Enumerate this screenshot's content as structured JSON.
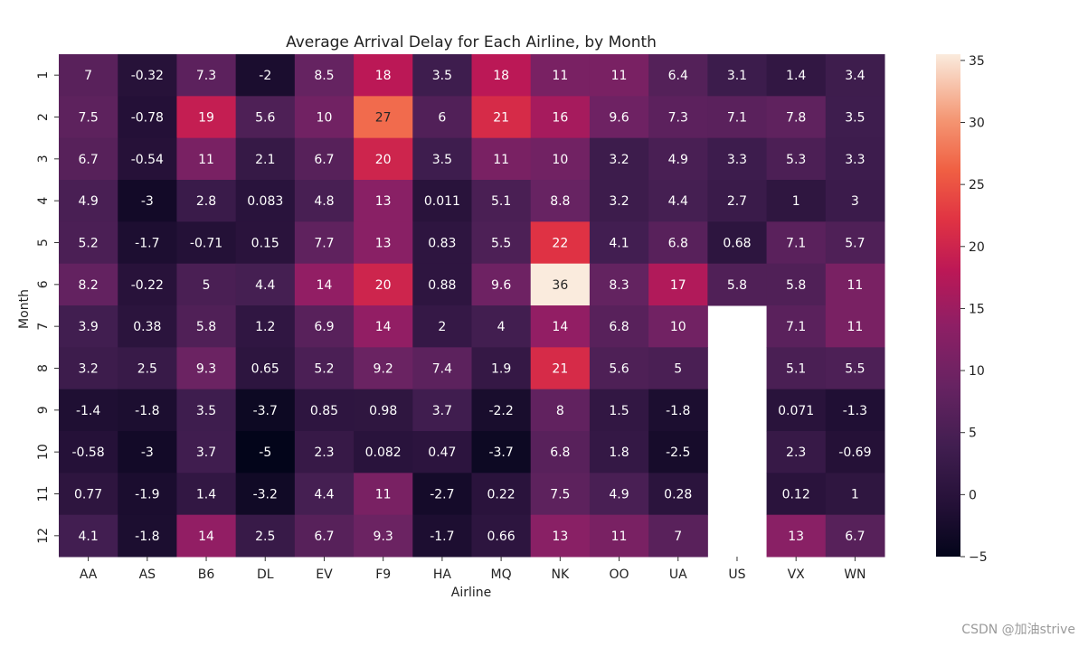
{
  "watermark": "CSDN @加油strive",
  "chart_data": {
    "type": "heatmap",
    "title": "Average Arrival Delay for Each Airline, by Month",
    "xlabel": "Airline",
    "ylabel": "Month",
    "x_categories": [
      "AA",
      "AS",
      "B6",
      "DL",
      "EV",
      "F9",
      "HA",
      "MQ",
      "NK",
      "OO",
      "UA",
      "US",
      "VX",
      "WN"
    ],
    "y_categories": [
      "1",
      "2",
      "3",
      "4",
      "5",
      "6",
      "7",
      "8",
      "9",
      "10",
      "11",
      "12"
    ],
    "values": [
      [
        "7",
        "-0.32",
        "7.3",
        "-2",
        "8.5",
        "18",
        "3.5",
        "18",
        "11",
        "11",
        "6.4",
        "3.1",
        "1.4",
        "3.4"
      ],
      [
        "7.5",
        "-0.78",
        "19",
        "5.6",
        "10",
        "27",
        "6",
        "21",
        "16",
        "9.6",
        "7.3",
        "7.1",
        "7.8",
        "3.5"
      ],
      [
        "6.7",
        "-0.54",
        "11",
        "2.1",
        "6.7",
        "20",
        "3.5",
        "11",
        "10",
        "3.2",
        "4.9",
        "3.3",
        "5.3",
        "3.3"
      ],
      [
        "4.9",
        "-3",
        "2.8",
        "0.083",
        "4.8",
        "13",
        "0.011",
        "5.1",
        "8.8",
        "3.2",
        "4.4",
        "2.7",
        "1",
        "3"
      ],
      [
        "5.2",
        "-1.7",
        "-0.71",
        "0.15",
        "7.7",
        "13",
        "0.83",
        "5.5",
        "22",
        "4.1",
        "6.8",
        "0.68",
        "7.1",
        "5.7"
      ],
      [
        "8.2",
        "-0.22",
        "5",
        "4.4",
        "14",
        "20",
        "0.88",
        "9.6",
        "36",
        "8.3",
        "17",
        "5.8",
        "5.8",
        "11"
      ],
      [
        "3.9",
        "0.38",
        "5.8",
        "1.2",
        "6.9",
        "14",
        "2",
        "4",
        "14",
        "6.8",
        "10",
        null,
        "7.1",
        "11"
      ],
      [
        "3.2",
        "2.5",
        "9.3",
        "0.65",
        "5.2",
        "9.2",
        "7.4",
        "1.9",
        "21",
        "5.6",
        "5",
        null,
        "5.1",
        "5.5"
      ],
      [
        "-1.4",
        "-1.8",
        "3.5",
        "-3.7",
        "0.85",
        "0.98",
        "3.7",
        "-2.2",
        "8",
        "1.5",
        "-1.8",
        null,
        "0.071",
        "-1.3"
      ],
      [
        "-0.58",
        "-3",
        "3.7",
        "-5",
        "2.3",
        "0.082",
        "0.47",
        "-3.7",
        "6.8",
        "1.8",
        "-2.5",
        null,
        "2.3",
        "-0.69"
      ],
      [
        "0.77",
        "-1.9",
        "1.4",
        "-3.2",
        "4.4",
        "11",
        "-2.7",
        "0.22",
        "7.5",
        "4.9",
        "0.28",
        null,
        "0.12",
        "1"
      ],
      [
        "4.1",
        "-1.8",
        "14",
        "2.5",
        "6.7",
        "9.3",
        "-1.7",
        "0.66",
        "13",
        "11",
        "7",
        null,
        "13",
        "6.7"
      ]
    ],
    "colorbar": {
      "min": -5,
      "max": 35.5,
      "ticks": [
        "35",
        "30",
        "25",
        "20",
        "15",
        "10",
        "5",
        "0",
        "−5"
      ]
    },
    "colormap": "rocket",
    "grid": false,
    "legend": "colorbar-right"
  }
}
